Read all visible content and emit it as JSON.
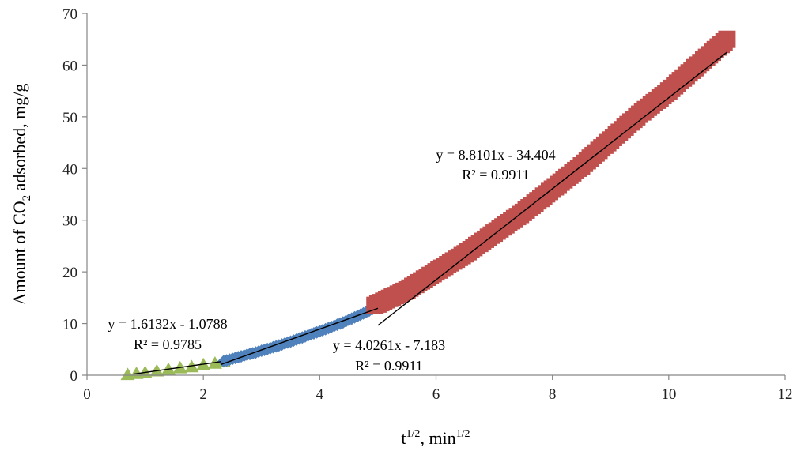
{
  "chart_data": {
    "type": "scatter",
    "xlabel": {
      "base": "t",
      "sup": "1/2",
      "mid": ", min",
      "sup2": "1/2"
    },
    "ylabel": {
      "pre": "Amount of CO",
      "sub": "2",
      "post": " adsorbed, mg/g"
    },
    "xlim": [
      0,
      12
    ],
    "ylim": [
      0,
      70
    ],
    "xticks": [
      0,
      2,
      4,
      6,
      8,
      10,
      12
    ],
    "yticks": [
      0,
      10,
      20,
      30,
      40,
      50,
      60,
      70
    ],
    "grid": false,
    "series": [
      {
        "marker": "triangle",
        "color": "#9BBB59",
        "points": [
          [
            0.7,
            0.1
          ],
          [
            1.0,
            0.5
          ],
          [
            1.2,
            0.8
          ],
          [
            1.4,
            1.1
          ],
          [
            1.6,
            1.4
          ],
          [
            1.8,
            1.6
          ],
          [
            2.0,
            2.0
          ],
          [
            2.2,
            2.3
          ],
          [
            2.35,
            2.6
          ]
        ],
        "fit": {
          "x": [
            0.8,
            2.3
          ],
          "slope": 1.6132,
          "intercept": -1.0788,
          "equation": "y = 1.6132x - 1.0788",
          "r2": "R² = 0.9785"
        }
      },
      {
        "marker": "diamond",
        "color": "#4F81BD",
        "points": [
          [
            2.35,
            2.7
          ],
          [
            2.6,
            3.5
          ],
          [
            2.9,
            4.4
          ],
          [
            3.2,
            5.4
          ],
          [
            3.5,
            6.5
          ],
          [
            3.8,
            7.7
          ],
          [
            4.1,
            8.9
          ],
          [
            4.4,
            10.2
          ],
          [
            4.7,
            11.7
          ],
          [
            4.95,
            13.0
          ]
        ],
        "fit": {
          "x": [
            2.3,
            5.0
          ],
          "slope": 4.0261,
          "intercept": -7.183,
          "equation": "y = 4.0261x - 7.183",
          "r2": "R² = 0.9911"
        }
      },
      {
        "marker": "square",
        "color": "#C0504D",
        "points": [
          [
            4.95,
            13.5
          ],
          [
            5.5,
            16.5
          ],
          [
            6.0,
            20.0
          ],
          [
            6.5,
            23.5
          ],
          [
            7.0,
            27.5
          ],
          [
            7.5,
            31.5
          ],
          [
            8.0,
            36.0
          ],
          [
            8.5,
            40.5
          ],
          [
            9.0,
            45.5
          ],
          [
            9.5,
            50.5
          ],
          [
            10.0,
            55.0
          ],
          [
            10.5,
            60.0
          ],
          [
            11.0,
            65.0
          ]
        ],
        "fit": {
          "x": [
            5.0,
            11.0
          ],
          "slope": 8.8101,
          "intercept": -34.404,
          "equation": "y = 8.8101x - 34.404",
          "r2": "R² = 0.9911"
        }
      }
    ]
  }
}
